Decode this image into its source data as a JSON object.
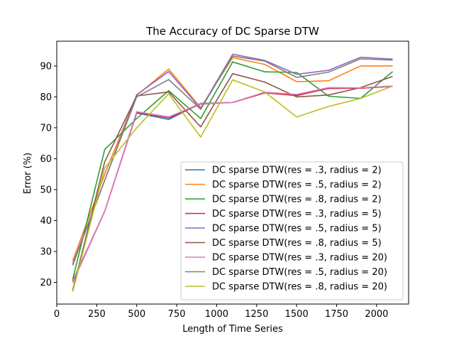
{
  "chart_data": {
    "type": "line",
    "title": "The Accuracy of DC Sparse DTW",
    "xlabel": "Length of Time Series",
    "ylabel": "Error (%)",
    "xlim": [
      0,
      2200
    ],
    "ylim": [
      13,
      98
    ],
    "xticks": [
      0,
      250,
      500,
      750,
      1000,
      1250,
      1500,
      1750,
      2000
    ],
    "yticks": [
      20,
      30,
      40,
      50,
      60,
      70,
      80,
      90
    ],
    "grid": false,
    "legend_position": "lower-right",
    "x": [
      100,
      300,
      500,
      700,
      900,
      1100,
      1300,
      1500,
      1700,
      1900,
      2100
    ],
    "series": [
      {
        "name": "DC sparse DTW(res = .3, radius = 2)",
        "color": "#1f77b4",
        "values": [
          20.5,
          43.0,
          74.8,
          72.7,
          77.9,
          78.2,
          81.3,
          80.6,
          82.7,
          82.8,
          83.4
        ]
      },
      {
        "name": "DC sparse DTW(res = .5, radius = 2)",
        "color": "#ff7f0e",
        "values": [
          27.0,
          55.0,
          80.5,
          89.0,
          76.5,
          92.7,
          90.5,
          84.9,
          85.2,
          90.0,
          90.0
        ]
      },
      {
        "name": "DC sparse DTW(res = .8, radius = 2)",
        "color": "#2ca02c",
        "values": [
          21.0,
          63.0,
          73.0,
          82.0,
          73.0,
          91.3,
          88.1,
          87.9,
          80.2,
          79.5,
          88.2
        ]
      },
      {
        "name": "DC sparse DTW(res = .3, radius = 5)",
        "color": "#d62728",
        "values": [
          20.0,
          43.0,
          75.0,
          73.2,
          77.7,
          78.2,
          81.3,
          80.4,
          82.8,
          82.8,
          83.4
        ]
      },
      {
        "name": "DC sparse DTW(res = .5, radius = 5)",
        "color": "#9467bd",
        "values": [
          26.0,
          53.0,
          80.7,
          88.2,
          76.2,
          93.8,
          91.8,
          87.3,
          88.6,
          92.8,
          92.2
        ]
      },
      {
        "name": "DC sparse DTW(res = .8, radius = 5)",
        "color": "#8c564b",
        "values": [
          17.5,
          59.0,
          80.3,
          81.6,
          70.3,
          87.5,
          84.8,
          80.0,
          80.6,
          83.0,
          86.6
        ]
      },
      {
        "name": "DC sparse DTW(res = .3, radius = 20)",
        "color": "#e377c2",
        "values": [
          20.2,
          43.0,
          75.2,
          73.5,
          77.8,
          78.2,
          81.5,
          80.8,
          83.0,
          82.9,
          83.5
        ]
      },
      {
        "name": "DC sparse DTW(res = .5, radius = 20)",
        "color": "#7f7f7f",
        "values": [
          25.5,
          53.0,
          80.0,
          85.6,
          76.0,
          93.2,
          91.6,
          86.3,
          88.0,
          92.3,
          91.9
        ]
      },
      {
        "name": "DC sparse DTW(res = .8, radius = 20)",
        "color": "#bcbd22",
        "values": [
          17.0,
          57.0,
          70.0,
          81.0,
          67.0,
          85.5,
          81.6,
          73.5,
          76.9,
          79.5,
          83.5
        ]
      }
    ]
  }
}
